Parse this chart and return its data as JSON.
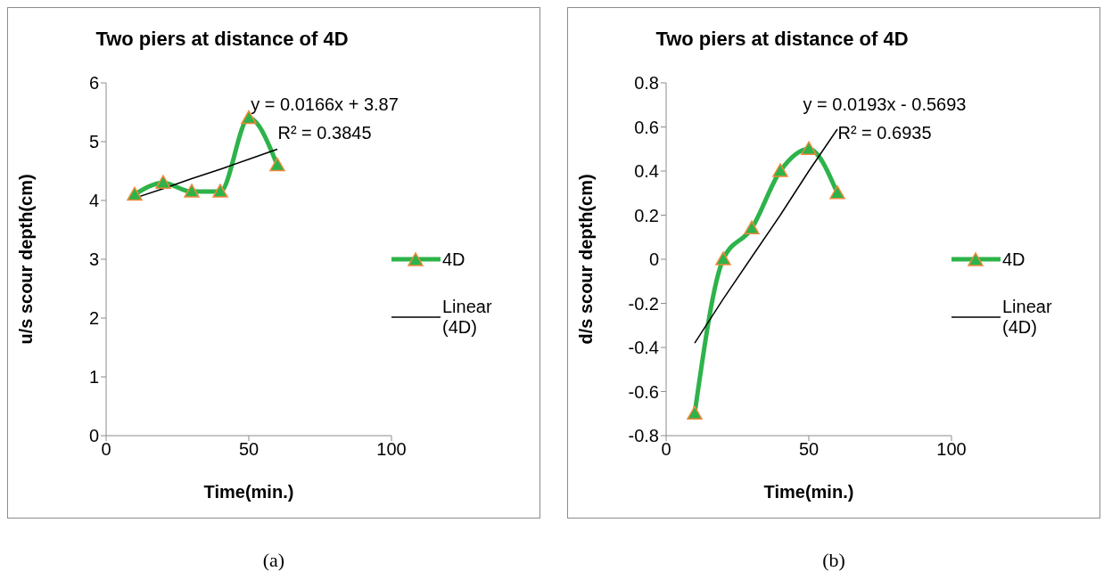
{
  "chart_data": [
    {
      "type": "line",
      "title": "Two piers at distance of 4D",
      "xlabel": "Time(min.)",
      "ylabel": "u/s scour depth(cm)",
      "xlim": [
        0,
        100
      ],
      "xticks": [
        0,
        50,
        100
      ],
      "ylim": [
        0,
        6
      ],
      "yticks": [
        0,
        1,
        2,
        3,
        4,
        5,
        6
      ],
      "grid": false,
      "legend": "right",
      "x": [
        10,
        20,
        30,
        40,
        50,
        60
      ],
      "series": [
        {
          "name": "4D",
          "color": "#2db34a",
          "marker": "triangle",
          "values": [
            4.1,
            4.3,
            4.15,
            4.15,
            5.4,
            4.6
          ]
        },
        {
          "name": "Linear (4D)",
          "color": "#000000",
          "marker": "none",
          "values": [
            4.04,
            4.2,
            4.37,
            4.53,
            4.7,
            4.87
          ]
        }
      ],
      "annotations": [
        "y = 0.0166x + 3.87",
        "R² = 0.3845",
        "(a)"
      ]
    },
    {
      "type": "line",
      "title": "Two piers at distance of 4D",
      "xlabel": "Time(min.)",
      "ylabel": "d/s scour depth(cm)",
      "xlim": [
        0,
        100
      ],
      "xticks": [
        0,
        50,
        100
      ],
      "ylim": [
        -0.8,
        0.8
      ],
      "yticks": [
        -0.8,
        -0.6,
        -0.4,
        -0.2,
        0,
        0.2,
        0.4,
        0.6,
        0.8
      ],
      "grid": false,
      "legend": "right",
      "x": [
        10,
        20,
        30,
        40,
        50,
        60
      ],
      "series": [
        {
          "name": "4D",
          "color": "#2db34a",
          "marker": "triangle",
          "values": [
            -0.7,
            0,
            0.14,
            0.4,
            0.5,
            0.3
          ]
        },
        {
          "name": "Linear (4D)",
          "color": "#000000",
          "marker": "none",
          "values": [
            -0.38,
            -0.18,
            0.01,
            0.2,
            0.4,
            0.59
          ]
        }
      ],
      "annotations": [
        "y = 0.0193x - 0.5693",
        "R² = 0.6935",
        "(b)"
      ]
    }
  ]
}
